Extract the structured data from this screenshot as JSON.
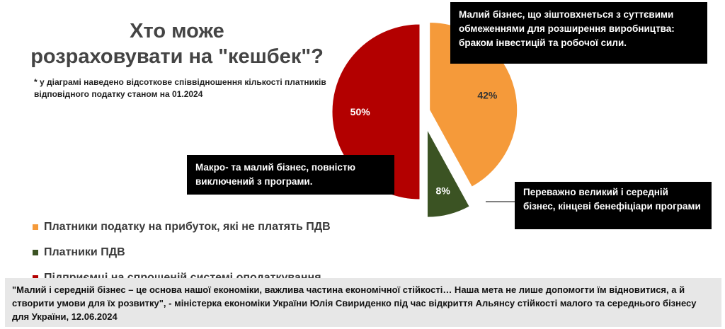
{
  "title_line1": "Хто може",
  "title_line2": "розраховувати на \"кешбек\"?",
  "note": "* у діаграмі наведено відсоткове співвідношення кількості платників відповідного податку станом на 01.2024",
  "chart_data": {
    "type": "pie",
    "title": "Хто може розраховувати на \"кешбек\"?",
    "slices": [
      {
        "label": "Платники податку на прибуток, які не платять ПДВ",
        "value": 42,
        "value_label": "42%",
        "color": "#F59A3A"
      },
      {
        "label": "Платники ПДВ",
        "value": 8,
        "value_label": "8%",
        "color": "#3B5323"
      },
      {
        "label": "Підприємці на спрощеній системі оподаткування",
        "value": 50,
        "value_label": "50%",
        "color": "#B30000"
      }
    ],
    "legend_position": "bottom-left",
    "exploded": true
  },
  "callouts": {
    "orange": "Малий бізнес, що зіштовхнеться з суттєвими обмеженнями для розширення виробництва: браком інвестицій та робочої сили.",
    "red": "Макро- та малий бізнес, повністю виключений з програми.",
    "green": "Переважно великий і середній бізнес, кінцеві бенефіціари програми"
  },
  "quote": "\"Малий і середній бізнес – це основа нашої економіки, важлива частина економічної стійкості… Наша мета не лише допомогти їм відновитися, а й створити умови для їх розвитку\", - міністерка економіки України Юлія Свириденко під час відкриття Альянсу стійкості малого та середнього бізнесу для України, 12.06.2024"
}
